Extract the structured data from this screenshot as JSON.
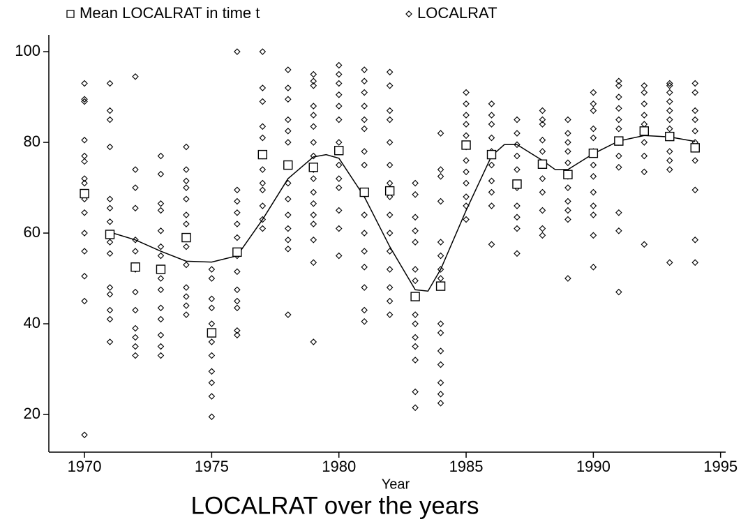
{
  "chart_data": {
    "type": "scatter",
    "title": "LOCALRAT over the years",
    "xlabel": "Year",
    "xlim": [
      1968.6,
      1995.2
    ],
    "ylim": [
      11.7,
      103.7
    ],
    "xticks": [
      1970,
      1975,
      1980,
      1985,
      1990,
      1995
    ],
    "yticks": [
      20,
      40,
      60,
      80,
      100
    ],
    "series": [
      {
        "name": "Mean LOCALRAT in time t",
        "marker": "square",
        "color": "#000000",
        "x": [
          1970,
          1971,
          1972,
          1973,
          1974,
          1975,
          1976,
          1977,
          1978,
          1979,
          1980,
          1981,
          1982,
          1983,
          1984,
          1985,
          1986,
          1987,
          1988,
          1989,
          1990,
          1991,
          1992,
          1993,
          1994
        ],
        "values": [
          68.7,
          59.7,
          52.5,
          52,
          59,
          38,
          55.8,
          77.3,
          75,
          74.5,
          78.2,
          69,
          69.3,
          46,
          48.3,
          79.4,
          77.3,
          70.8,
          75.2,
          72.9,
          77.6,
          80.3,
          82.5,
          81.3,
          78.8
        ]
      },
      {
        "name": "LOCALRAT",
        "marker": "diamond",
        "color": "#000000",
        "groups": [
          {
            "x": 1970,
            "values": [
              93,
              89.5,
              89,
              80.5,
              77,
              75.8,
              72,
              71,
              67.5,
              64.5,
              60,
              56,
              50.5,
              45,
              15.5
            ]
          },
          {
            "x": 1971,
            "values": [
              93,
              87,
              85,
              79,
              67.5,
              65.5,
              62.5,
              58,
              55.5,
              48,
              46.5,
              43,
              41,
              36
            ]
          },
          {
            "x": 1972,
            "values": [
              94.5,
              74,
              70,
              65.5,
              58.5,
              56,
              52,
              47,
              43,
              39,
              37,
              35,
              33
            ]
          },
          {
            "x": 1973,
            "values": [
              77,
              73,
              66.5,
              65,
              60.5,
              57,
              55,
              50,
              47.5,
              43.5,
              41,
              37.5,
              35,
              33
            ]
          },
          {
            "x": 1974,
            "values": [
              79,
              74,
              71.5,
              70,
              67.5,
              64,
              62,
              57,
              53,
              48,
              46,
              44,
              42
            ]
          },
          {
            "x": 1975,
            "values": [
              52,
              50,
              45.5,
              43.5,
              40,
              38,
              36,
              33,
              29.5,
              27,
              24,
              19.5
            ]
          },
          {
            "x": 1976,
            "values": [
              100,
              69.5,
              67,
              64.5,
              62,
              59,
              55,
              51.5,
              47.5,
              45,
              43.5,
              38.5,
              37.5
            ]
          },
          {
            "x": 1977,
            "values": [
              100,
              92,
              89,
              83.5,
              81,
              77,
              74,
              71,
              69.5,
              66,
              63,
              61
            ]
          },
          {
            "x": 1978,
            "values": [
              96,
              92,
              89.5,
              85,
              82.5,
              80,
              75,
              71,
              67.5,
              64,
              61,
              58.5,
              56.5,
              42
            ]
          },
          {
            "x": 1979,
            "values": [
              95,
              93.5,
              92.5,
              88,
              86,
              83.5,
              80,
              77,
              74,
              72,
              69,
              66.5,
              64,
              62,
              58.5,
              53.5,
              36
            ]
          },
          {
            "x": 1980,
            "values": [
              97,
              95,
              93,
              90.5,
              88,
              85,
              80,
              78,
              75,
              72,
              70,
              65,
              61,
              55
            ]
          },
          {
            "x": 1981,
            "values": [
              96,
              93.5,
              91,
              88,
              85,
              83,
              78,
              75,
              69,
              64,
              60,
              56,
              52.5,
              48,
              43,
              40.5
            ]
          },
          {
            "x": 1982,
            "values": [
              95.5,
              92.5,
              87,
              85,
              80,
              75,
              71,
              68,
              64,
              60,
              56,
              52,
              48,
              45,
              42
            ]
          },
          {
            "x": 1983,
            "values": [
              71,
              68.5,
              63.5,
              60.5,
              58,
              52,
              49.5,
              46,
              42,
              40,
              37,
              35,
              32,
              25,
              21.5
            ]
          },
          {
            "x": 1984,
            "values": [
              82,
              74,
              72.5,
              67,
              58,
              55,
              52,
              50,
              40,
              38,
              34,
              31,
              27,
              24.5,
              22.5
            ]
          },
          {
            "x": 1985,
            "values": [
              91,
              88.5,
              86,
              84,
              81.5,
              79,
              76,
              73.5,
              71,
              68,
              66,
              63
            ]
          },
          {
            "x": 1986,
            "values": [
              88.5,
              86,
              84,
              81,
              78,
              75,
              71.5,
              69,
              66,
              57.5
            ]
          },
          {
            "x": 1987,
            "values": [
              85,
              82,
              79.5,
              77,
              74,
              70,
              66,
              63.5,
              61,
              55.5
            ]
          },
          {
            "x": 1988,
            "values": [
              87,
              85,
              84,
              80.5,
              78,
              75,
              72,
              69,
              65,
              61,
              59.5
            ]
          },
          {
            "x": 1989,
            "values": [
              85,
              82,
              80,
              78,
              75.5,
              72.5,
              70,
              67,
              65,
              63,
              50
            ]
          },
          {
            "x": 1990,
            "values": [
              91,
              88.5,
              87,
              83,
              81,
              78,
              75,
              72.5,
              69,
              66,
              64,
              59.5,
              52.5
            ]
          },
          {
            "x": 1991,
            "values": [
              93.5,
              92.5,
              90,
              87.5,
              85,
              83,
              80,
              77,
              74.5,
              64.5,
              60.5,
              47
            ]
          },
          {
            "x": 1992,
            "values": [
              92.5,
              91,
              88.5,
              86,
              84,
              82.5,
              80,
              77,
              73.5,
              57.5
            ]
          },
          {
            "x": 1993,
            "values": [
              93,
              92.5,
              91,
              89,
              87,
              85,
              83,
              81,
              78,
              76,
              74,
              53.5
            ]
          },
          {
            "x": 1994,
            "values": [
              93,
              91,
              87,
              85,
              82.5,
              80,
              78.5,
              76,
              69.5,
              58.5,
              53.5
            ]
          }
        ]
      }
    ],
    "smooth": {
      "color": "#000000",
      "x": [
        1971,
        1972,
        1973,
        1974,
        1975,
        1976,
        1977,
        1978,
        1979,
        1979.5,
        1980,
        1981,
        1982,
        1983,
        1983.5,
        1984,
        1985,
        1986,
        1986.5,
        1987,
        1988,
        1988.5,
        1989,
        1990,
        1991,
        1992,
        1993,
        1994
      ],
      "values": [
        60.2,
        58.5,
        56,
        53.8,
        53.6,
        55,
        63,
        72,
        76.8,
        77.3,
        76.5,
        68,
        57,
        47.5,
        47.2,
        52,
        65,
        77,
        79.5,
        79.5,
        76,
        74,
        74,
        77.5,
        80.3,
        81.5,
        81.2,
        80.2
      ]
    }
  }
}
